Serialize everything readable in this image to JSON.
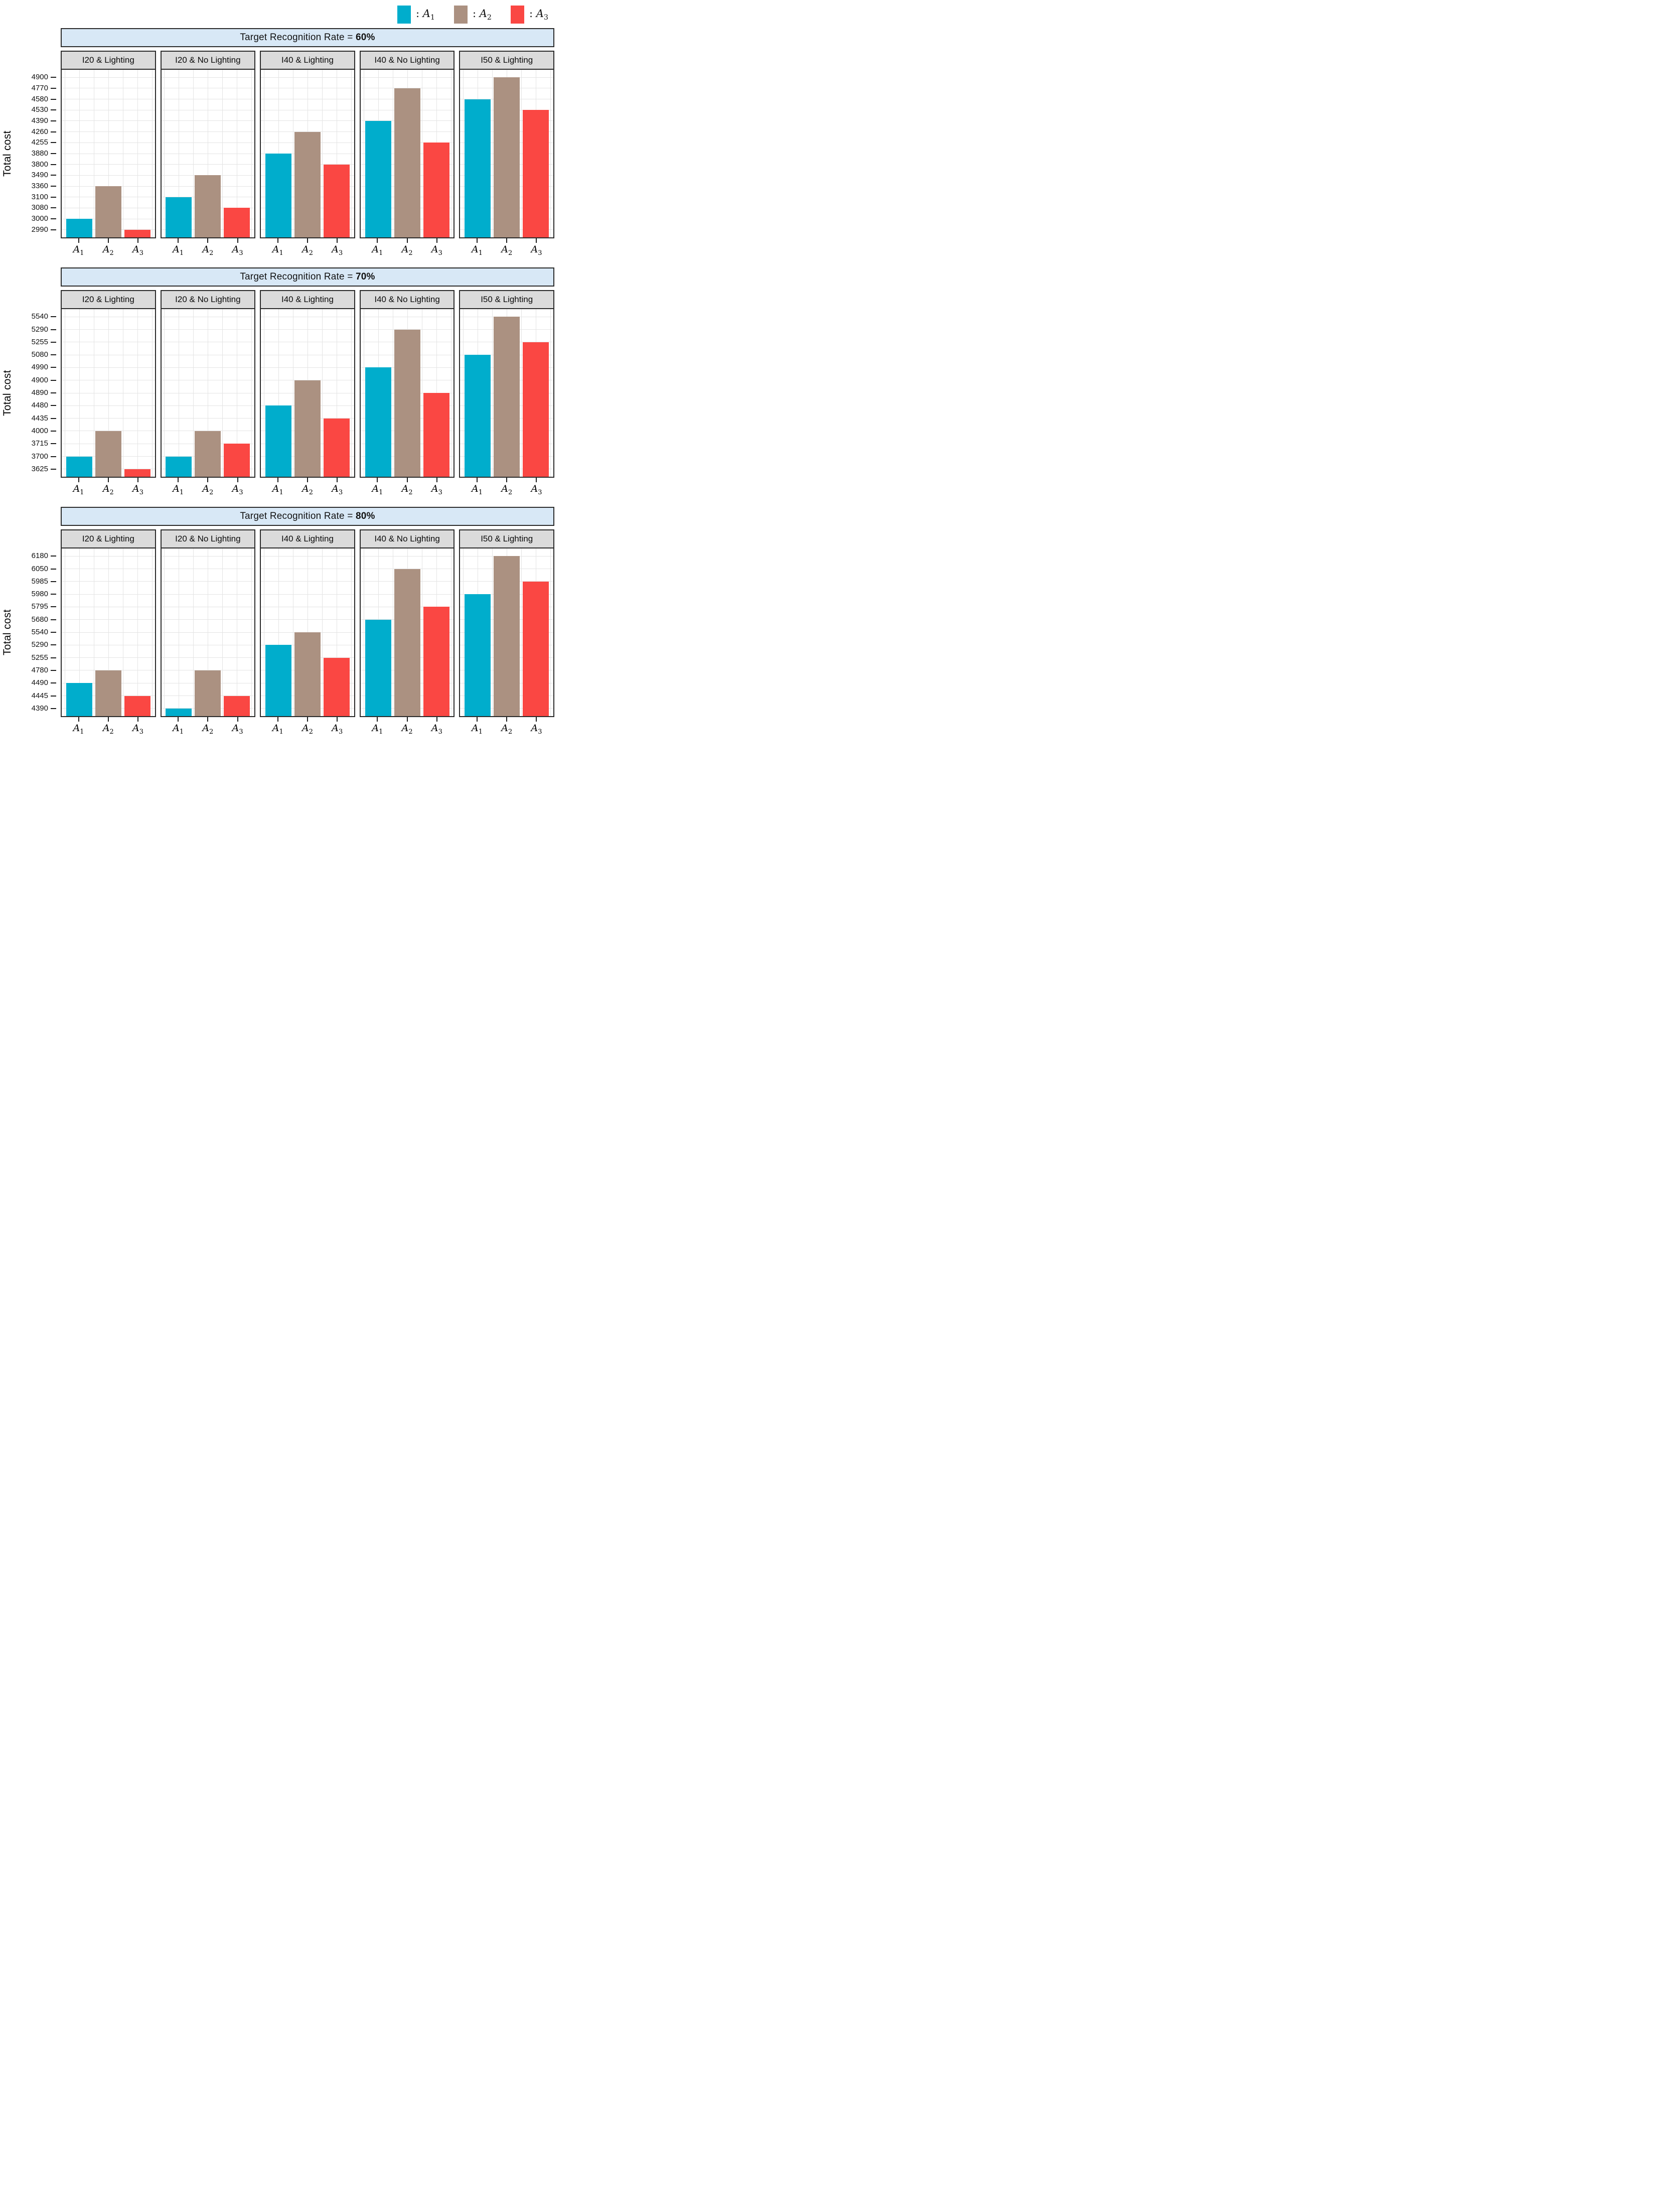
{
  "figure": {
    "ylabel": "Total cost",
    "colors": {
      "series": [
        "#00ADCC",
        "#AB9181",
        "#FA4743"
      ],
      "row_strip_bg": "#D8E8F6",
      "facet_strip_bg": "#DBDBDB",
      "panel_border": "#2B2B2B",
      "gridline": "#E4E4E4"
    },
    "categories": [
      {
        "base": "A",
        "sub": "1"
      },
      {
        "base": "A",
        "sub": "2"
      },
      {
        "base": "A",
        "sub": "3"
      }
    ],
    "legend": {
      "items": [
        {
          "prefix": ": ",
          "base": "A",
          "sub": "1",
          "color": "#00ADCC"
        },
        {
          "prefix": ": ",
          "base": "A",
          "sub": "2",
          "color": "#AB9181"
        },
        {
          "prefix": ": ",
          "base": "A",
          "sub": "3",
          "color": "#FA4743"
        }
      ]
    }
  },
  "chart_data": [
    {
      "type": "bar",
      "title_prefix": "Target Recognition Rate = ",
      "title_bold": "60%",
      "ylabel": "Total cost",
      "y_axis_style": "rank-ordered ticks, evenly spaced",
      "yticks": [
        2990,
        3000,
        3080,
        3100,
        3360,
        3490,
        3800,
        3880,
        4255,
        4260,
        4390,
        4530,
        4580,
        4770,
        4900
      ],
      "categories": [
        "A1",
        "A2",
        "A3"
      ],
      "panels": [
        {
          "title": "I20 & Lighting",
          "values": [
            3000,
            3360,
            2990
          ]
        },
        {
          "title": "I20 & No Lighting",
          "values": [
            3100,
            3490,
            3080
          ]
        },
        {
          "title": "I40 & Lighting",
          "values": [
            3880,
            4260,
            3800
          ]
        },
        {
          "title": "I40 & No Lighting",
          "values": [
            4390,
            4770,
            4255
          ]
        },
        {
          "title": "I50 & Lighting",
          "values": [
            4580,
            4900,
            4530
          ]
        }
      ]
    },
    {
      "type": "bar",
      "title_prefix": "Target Recognition Rate = ",
      "title_bold": "70%",
      "ylabel": "Total cost",
      "y_axis_style": "rank-ordered ticks, evenly spaced",
      "yticks": [
        3625,
        3700,
        3715,
        4000,
        4435,
        4480,
        4890,
        4900,
        4990,
        5080,
        5255,
        5290,
        5540
      ],
      "categories": [
        "A1",
        "A2",
        "A3"
      ],
      "panels": [
        {
          "title": "I20 & Lighting",
          "values": [
            3700,
            4000,
            3625
          ]
        },
        {
          "title": "I20 & No Lighting",
          "values": [
            3700,
            4000,
            3715
          ]
        },
        {
          "title": "I40 & Lighting",
          "values": [
            4480,
            4900,
            4435
          ]
        },
        {
          "title": "I40 & No Lighting",
          "values": [
            4990,
            5290,
            4890
          ]
        },
        {
          "title": "I50 & Lighting",
          "values": [
            5080,
            5540,
            5255
          ]
        }
      ]
    },
    {
      "type": "bar",
      "title_prefix": "Target Recognition Rate = ",
      "title_bold": "80%",
      "ylabel": "Total cost",
      "y_axis_style": "rank-ordered ticks, evenly spaced",
      "yticks": [
        4390,
        4445,
        4490,
        4780,
        5255,
        5290,
        5540,
        5680,
        5795,
        5980,
        5985,
        6050,
        6180
      ],
      "categories": [
        "A1",
        "A2",
        "A3"
      ],
      "panels": [
        {
          "title": "I20 & Lighting",
          "values": [
            4490,
            4780,
            4445
          ]
        },
        {
          "title": "I20 & No Lighting",
          "values": [
            4390,
            4780,
            4445
          ]
        },
        {
          "title": "I40 & Lighting",
          "values": [
            5290,
            5540,
            5255
          ]
        },
        {
          "title": "I40 & No Lighting",
          "values": [
            5680,
            6050,
            5795
          ]
        },
        {
          "title": "I50 & Lighting",
          "values": [
            5980,
            6180,
            5985
          ]
        }
      ]
    }
  ]
}
